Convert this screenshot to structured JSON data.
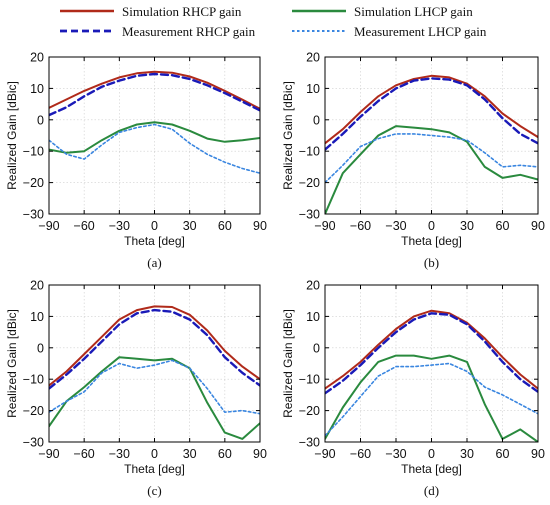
{
  "legend": {
    "items": [
      {
        "label": "Simulation RHCP gain",
        "color": "#b02a1a",
        "style": "solid"
      },
      {
        "label": "Measurement RHCP gain",
        "color": "#1a1ab8",
        "style": "dashed"
      },
      {
        "label": "Simulation LHCP gain",
        "color": "#2a8a3e",
        "style": "solid"
      },
      {
        "label": "Measurement LHCP gain",
        "color": "#3a86e0",
        "style": "dotted"
      }
    ]
  },
  "chart_data": [
    {
      "type": "line",
      "caption": "(a)",
      "xlabel": "Theta [deg]",
      "ylabel": "Realized Gain [dBic]",
      "xlim": [
        -90,
        90
      ],
      "ylim": [
        -30,
        20
      ],
      "xticks": [
        -90,
        -60,
        -30,
        0,
        30,
        60,
        90
      ],
      "yticks": [
        -30,
        -20,
        -10,
        0,
        10,
        20
      ],
      "x": [
        -90,
        -75,
        -60,
        -45,
        -30,
        -15,
        0,
        15,
        30,
        45,
        60,
        75,
        90
      ],
      "series": [
        {
          "name": "Simulation RHCP gain",
          "values": [
            3.8,
            6.5,
            9.2,
            11.5,
            13.5,
            14.8,
            15.3,
            15.0,
            13.8,
            11.8,
            9.2,
            6.4,
            3.5
          ]
        },
        {
          "name": "Measurement RHCP gain",
          "values": [
            1.5,
            4.0,
            7.5,
            10.5,
            12.5,
            14.0,
            14.6,
            14.2,
            13.0,
            11.0,
            8.5,
            5.8,
            3.0
          ]
        },
        {
          "name": "Simulation LHCP gain",
          "values": [
            -9.5,
            -10.5,
            -10.0,
            -6.5,
            -3.5,
            -1.5,
            -0.8,
            -1.5,
            -3.5,
            -6.0,
            -7.0,
            -6.5,
            -5.8
          ]
        },
        {
          "name": "Measurement LHCP gain",
          "values": [
            -6.5,
            -11.0,
            -12.5,
            -8.0,
            -4.0,
            -2.5,
            -1.5,
            -3.0,
            -7.5,
            -11.0,
            -13.5,
            -15.5,
            -17.0
          ]
        }
      ]
    },
    {
      "type": "line",
      "caption": "(b)",
      "xlabel": "Theta [deg]",
      "ylabel": "Realized Gain [dBic]",
      "xlim": [
        -90,
        90
      ],
      "ylim": [
        -30,
        20
      ],
      "xticks": [
        -90,
        -60,
        -30,
        0,
        30,
        60,
        90
      ],
      "yticks": [
        -30,
        -20,
        -10,
        0,
        10,
        20
      ],
      "x": [
        -90,
        -75,
        -60,
        -45,
        -30,
        -15,
        0,
        15,
        30,
        45,
        60,
        75,
        90
      ],
      "series": [
        {
          "name": "Simulation RHCP gain",
          "values": [
            -7.5,
            -3.0,
            2.5,
            7.5,
            11.0,
            13.0,
            14.0,
            13.5,
            11.5,
            7.5,
            2.0,
            -2.0,
            -5.5
          ]
        },
        {
          "name": "Measurement RHCP gain",
          "values": [
            -9.5,
            -4.5,
            1.0,
            6.0,
            10.0,
            12.5,
            13.2,
            12.8,
            11.0,
            6.5,
            0.5,
            -4.5,
            -7.5
          ]
        },
        {
          "name": "Simulation LHCP gain",
          "values": [
            -30.0,
            -17.0,
            -11.0,
            -5.0,
            -2.0,
            -2.5,
            -3.0,
            -4.0,
            -7.0,
            -15.0,
            -18.5,
            -17.5,
            -19.0
          ]
        },
        {
          "name": "Measurement LHCP gain",
          "values": [
            -20.0,
            -14.5,
            -8.5,
            -6.0,
            -4.5,
            -4.5,
            -5.0,
            -5.5,
            -6.5,
            -10.5,
            -15.0,
            -14.5,
            -15.0
          ]
        }
      ]
    },
    {
      "type": "line",
      "caption": "(c)",
      "xlabel": "Theta [deg]",
      "ylabel": "Realized Gain [dBic]",
      "xlim": [
        -90,
        90
      ],
      "ylim": [
        -30,
        20
      ],
      "xticks": [
        -90,
        -60,
        -30,
        0,
        30,
        60,
        90
      ],
      "yticks": [
        -30,
        -20,
        -10,
        0,
        10,
        20
      ],
      "x": [
        -90,
        -75,
        -60,
        -45,
        -30,
        -15,
        0,
        15,
        30,
        45,
        60,
        75,
        90
      ],
      "series": [
        {
          "name": "Simulation RHCP gain",
          "values": [
            -12.0,
            -7.5,
            -2.0,
            3.5,
            9.0,
            12.0,
            13.2,
            13.0,
            10.5,
            5.5,
            -1.0,
            -6.0,
            -10.0
          ]
        },
        {
          "name": "Measurement RHCP gain",
          "values": [
            -13.0,
            -8.5,
            -3.5,
            2.0,
            7.5,
            11.0,
            12.0,
            11.5,
            9.0,
            4.0,
            -3.0,
            -8.0,
            -12.0
          ]
        },
        {
          "name": "Simulation LHCP gain",
          "values": [
            -25.0,
            -17.0,
            -12.5,
            -7.5,
            -3.0,
            -3.5,
            -4.0,
            -3.5,
            -6.5,
            -17.5,
            -27.0,
            -29.0,
            -24.0
          ]
        },
        {
          "name": "Measurement LHCP gain",
          "values": [
            -20.5,
            -17.0,
            -14.0,
            -8.0,
            -5.0,
            -6.5,
            -5.5,
            -4.0,
            -6.5,
            -13.0,
            -20.5,
            -20.0,
            -21.0
          ]
        }
      ]
    },
    {
      "type": "line",
      "caption": "(d)",
      "xlabel": "Theta [deg]",
      "ylabel": "Realized Gain [dBic]",
      "xlim": [
        -90,
        90
      ],
      "ylim": [
        -30,
        20
      ],
      "xticks": [
        -90,
        -60,
        -30,
        0,
        30,
        60,
        90
      ],
      "yticks": [
        -30,
        -20,
        -10,
        0,
        10,
        20
      ],
      "x": [
        -90,
        -75,
        -60,
        -45,
        -30,
        -15,
        0,
        15,
        30,
        45,
        60,
        75,
        90
      ],
      "series": [
        {
          "name": "Simulation RHCP gain",
          "values": [
            -13.0,
            -9.0,
            -4.5,
            1.0,
            6.0,
            10.0,
            11.8,
            11.0,
            8.0,
            3.0,
            -3.0,
            -8.5,
            -13.0
          ]
        },
        {
          "name": "Measurement RHCP gain",
          "values": [
            -14.5,
            -10.5,
            -5.5,
            0.0,
            5.0,
            9.0,
            11.0,
            10.5,
            7.5,
            2.0,
            -4.5,
            -10.0,
            -14.0
          ]
        },
        {
          "name": "Simulation LHCP gain",
          "values": [
            -29.0,
            -19.0,
            -11.0,
            -4.5,
            -2.5,
            -2.5,
            -3.5,
            -2.5,
            -4.5,
            -18.0,
            -29.0,
            -26.0,
            -30.0
          ]
        },
        {
          "name": "Measurement LHCP gain",
          "values": [
            -28.0,
            -22.0,
            -15.5,
            -9.0,
            -6.0,
            -6.0,
            -5.5,
            -5.0,
            -7.5,
            -12.5,
            -15.0,
            -18.0,
            -21.0
          ]
        }
      ]
    }
  ]
}
